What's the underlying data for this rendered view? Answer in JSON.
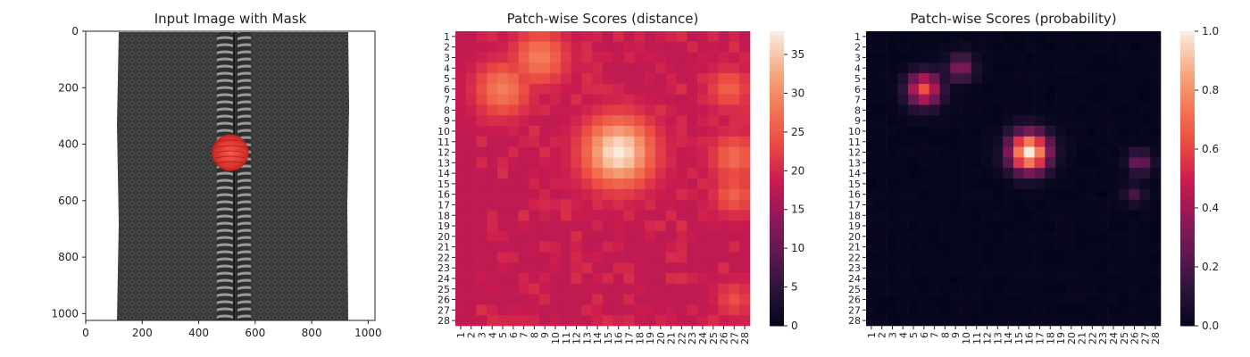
{
  "chart_data": [
    {
      "type": "image",
      "title": "Input Image with Mask",
      "xlim": [
        0,
        1024
      ],
      "ylim": [
        1024,
        0
      ],
      "x_ticks": [
        0,
        200,
        400,
        600,
        800,
        1000
      ],
      "y_ticks": [
        0,
        200,
        400,
        600,
        800,
        1000
      ],
      "x_tick_labels": [
        "0",
        "200",
        "400",
        "600",
        "800",
        "1000"
      ],
      "y_tick_labels": [
        "0",
        "200",
        "400",
        "600",
        "800",
        "1000"
      ],
      "content": "zipper-on-black-fabric",
      "mask_color": "#e0302a",
      "mask_center": [
        512,
        430
      ],
      "mask_radius": 65
    },
    {
      "type": "heatmap",
      "title": "Patch-wise Scores (distance)",
      "rows": 28,
      "cols": 28,
      "x_tick_labels": [
        "1",
        "2",
        "3",
        "4",
        "5",
        "6",
        "7",
        "8",
        "9",
        "10",
        "11",
        "12",
        "13",
        "14",
        "15",
        "16",
        "17",
        "18",
        "19",
        "20",
        "21",
        "22",
        "23",
        "24",
        "25",
        "26",
        "27",
        "28"
      ],
      "y_tick_labels": [
        "1",
        "2",
        "3",
        "4",
        "5",
        "6",
        "7",
        "8",
        "9",
        "10",
        "11",
        "12",
        "13",
        "14",
        "15",
        "16",
        "17",
        "18",
        "19",
        "20",
        "21",
        "22",
        "23",
        "24",
        "25",
        "26",
        "27",
        "28"
      ],
      "colormap": "rocket",
      "vmin": 0,
      "vmax": 38,
      "colorbar_ticks": [
        0,
        5,
        10,
        15,
        20,
        25,
        30,
        35
      ],
      "colorbar_tick_labels": [
        "0",
        "5",
        "10",
        "15",
        "20",
        "25",
        "30",
        "35"
      ],
      "background_level": 18,
      "hotspots": [
        {
          "row": 12,
          "col": 16,
          "peak": 38,
          "spread": 2.3
        },
        {
          "row": 3,
          "col": 8.5,
          "peak": 29,
          "spread": 1.8
        },
        {
          "row": 6,
          "col": 5,
          "peak": 29,
          "spread": 1.8
        },
        {
          "row": 12.5,
          "col": 27,
          "peak": 27,
          "spread": 1.6
        },
        {
          "row": 6,
          "col": 26.5,
          "peak": 26,
          "spread": 1.4
        },
        {
          "row": 16,
          "col": 27,
          "peak": 26,
          "spread": 1.4
        },
        {
          "row": 26,
          "col": 27,
          "peak": 24,
          "spread": 1.2
        }
      ]
    },
    {
      "type": "heatmap",
      "title": "Patch-wise Scores (probability)",
      "rows": 28,
      "cols": 28,
      "x_tick_labels": [
        "1",
        "2",
        "3",
        "4",
        "5",
        "6",
        "7",
        "8",
        "9",
        "10",
        "11",
        "12",
        "13",
        "14",
        "15",
        "16",
        "17",
        "18",
        "19",
        "20",
        "21",
        "22",
        "23",
        "24",
        "25",
        "26",
        "27",
        "28"
      ],
      "y_tick_labels": [
        "1",
        "2",
        "3",
        "4",
        "5",
        "6",
        "7",
        "8",
        "9",
        "10",
        "11",
        "12",
        "13",
        "14",
        "15",
        "16",
        "17",
        "18",
        "19",
        "20",
        "21",
        "22",
        "23",
        "24",
        "25",
        "26",
        "27",
        "28"
      ],
      "colormap": "rocket",
      "vmin": 0.0,
      "vmax": 1.0,
      "colorbar_ticks": [
        0.0,
        0.2,
        0.4,
        0.6,
        0.8,
        1.0
      ],
      "colorbar_tick_labels": [
        "0.0",
        "0.2",
        "0.4",
        "0.6",
        "0.8",
        "1.0"
      ],
      "background_level": 0.0,
      "hotspots": [
        {
          "row": 12,
          "col": 16,
          "peak": 1.0,
          "spread": 1.3
        },
        {
          "row": 6,
          "col": 6,
          "peak": 0.62,
          "spread": 1.1
        },
        {
          "row": 4,
          "col": 9.5,
          "peak": 0.35,
          "spread": 0.9
        },
        {
          "row": 13,
          "col": 26.5,
          "peak": 0.3,
          "spread": 0.8
        },
        {
          "row": 16,
          "col": 26,
          "peak": 0.18,
          "spread": 0.7
        }
      ]
    }
  ]
}
